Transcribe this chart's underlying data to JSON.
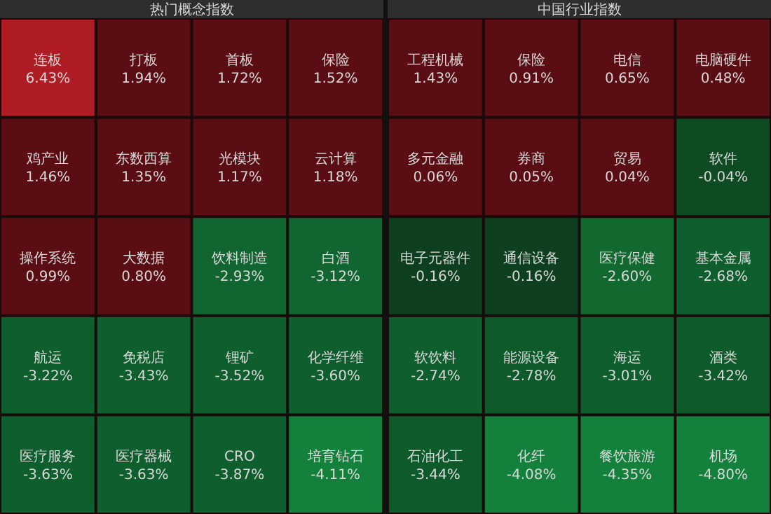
{
  "chart_data": [
    {
      "type": "other",
      "title": "热门概念指数",
      "categories": [
        "连板",
        "打板",
        "首板",
        "保险",
        "鸡产业",
        "东数西算",
        "光模块",
        "云计算",
        "操作系统",
        "大数据",
        "饮料制造",
        "白酒",
        "航运",
        "免税店",
        "锂矿",
        "化学纤维",
        "医疗服务",
        "医疗器械",
        "CRO",
        "培育钻石"
      ],
      "values": [
        6.43,
        1.94,
        1.72,
        1.52,
        1.46,
        1.35,
        1.17,
        1.18,
        0.99,
        0.8,
        -2.93,
        -3.12,
        -3.22,
        -3.43,
        -3.52,
        -3.6,
        -3.63,
        -3.63,
        -3.87,
        -4.11
      ],
      "value_labels": [
        "6.43%",
        "1.94%",
        "1.72%",
        "1.52%",
        "1.46%",
        "1.35%",
        "1.17%",
        "1.18%",
        "0.99%",
        "0.80%",
        "-2.93%",
        "-3.12%",
        "-3.22%",
        "-3.43%",
        "-3.52%",
        "-3.60%",
        "-3.63%",
        "-3.63%",
        "-3.87%",
        "-4.11%"
      ],
      "colors": [
        "#b01c24",
        "#5a0d12",
        "#5a0d12",
        "#5a0d12",
        "#5a0d12",
        "#5a0d12",
        "#5a0d12",
        "#5a0d12",
        "#5a0d12",
        "#5a0d12",
        "#106530",
        "#106530",
        "#0f5e2d",
        "#0f5e2d",
        "#0f5e2d",
        "#0f5e2d",
        "#0f5e2d",
        "#0f5e2d",
        "#0f5e2d",
        "#13803c"
      ]
    },
    {
      "type": "other",
      "title": "中国行业指数",
      "categories": [
        "工程机械",
        "保险",
        "电信",
        "电脑硬件",
        "多元金融",
        "券商",
        "贸易",
        "软件",
        "电子元器件",
        "通信设备",
        "医疗保健",
        "基本金属",
        "软饮料",
        "能源设备",
        "海运",
        "酒类",
        "石油化工",
        "化纤",
        "餐饮旅游",
        "机场"
      ],
      "values": [
        1.43,
        0.91,
        0.65,
        0.48,
        0.06,
        0.05,
        0.04,
        -0.04,
        -0.16,
        -0.16,
        -2.6,
        -2.68,
        -2.74,
        -2.78,
        -3.01,
        -3.42,
        -3.44,
        -4.08,
        -4.35,
        -4.8
      ],
      "value_labels": [
        "1.43%",
        "0.91%",
        "0.65%",
        "0.48%",
        "0.06%",
        "0.05%",
        "0.04%",
        "-0.04%",
        "-0.16%",
        "-0.16%",
        "-2.60%",
        "-2.68%",
        "-2.74%",
        "-2.78%",
        "-3.01%",
        "-3.42%",
        "-3.44%",
        "-4.08%",
        "-4.35%",
        "-4.80%"
      ],
      "colors": [
        "#5a0d12",
        "#5a0d12",
        "#5a0d12",
        "#5a0d12",
        "#5a0d12",
        "#5a0d12",
        "#5a0d12",
        "#0e4a22",
        "#0e3f1f",
        "#0e3f1f",
        "#11692f",
        "#0f5e2d",
        "#0f5e2d",
        "#0e5a2a",
        "#0f5e2d",
        "#0e5a2a",
        "#0e5a2a",
        "#13803c",
        "#13803c",
        "#13803c"
      ]
    }
  ]
}
